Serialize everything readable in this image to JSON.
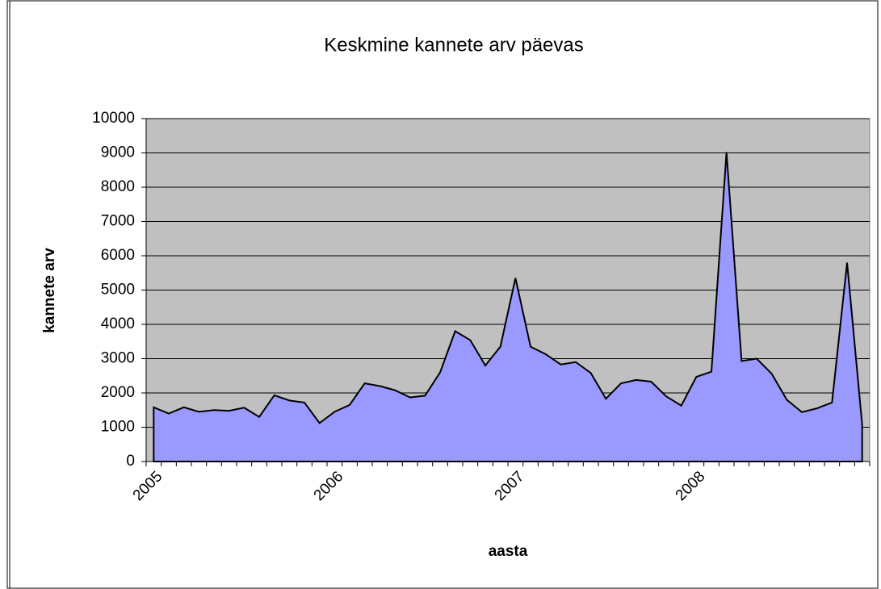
{
  "chart_data": {
    "type": "area",
    "title": "Keskmine kannete arv päevas",
    "x_label": "aasta",
    "y_label": "kannete arv",
    "categories": [
      "2005",
      null,
      null,
      null,
      null,
      null,
      null,
      null,
      null,
      null,
      null,
      null,
      "2006",
      null,
      null,
      null,
      null,
      null,
      null,
      null,
      null,
      null,
      null,
      null,
      "2007",
      null,
      null,
      null,
      null,
      null,
      null,
      null,
      null,
      null,
      null,
      null,
      "2008",
      null,
      null,
      null,
      null,
      null,
      null,
      null,
      null,
      null,
      null,
      null
    ],
    "values": [
      1580,
      1400,
      1580,
      1450,
      1500,
      1480,
      1570,
      1300,
      1930,
      1780,
      1720,
      1120,
      1450,
      1650,
      2280,
      2200,
      2080,
      1870,
      1920,
      2600,
      3800,
      3540,
      2800,
      3350,
      5350,
      3350,
      3130,
      2830,
      2900,
      2580,
      1830,
      2280,
      2380,
      2330,
      1900,
      1630,
      2470,
      2620,
      9020,
      2930,
      3000,
      2560,
      1800,
      1440,
      1550,
      1720,
      5800,
      1070
    ],
    "color": "#9999ff",
    "ylim": [
      0,
      10000
    ],
    "yticks": [
      0,
      1000,
      2000,
      3000,
      4000,
      5000,
      6000,
      7000,
      8000,
      9000,
      10000
    ],
    "grid": true
  }
}
